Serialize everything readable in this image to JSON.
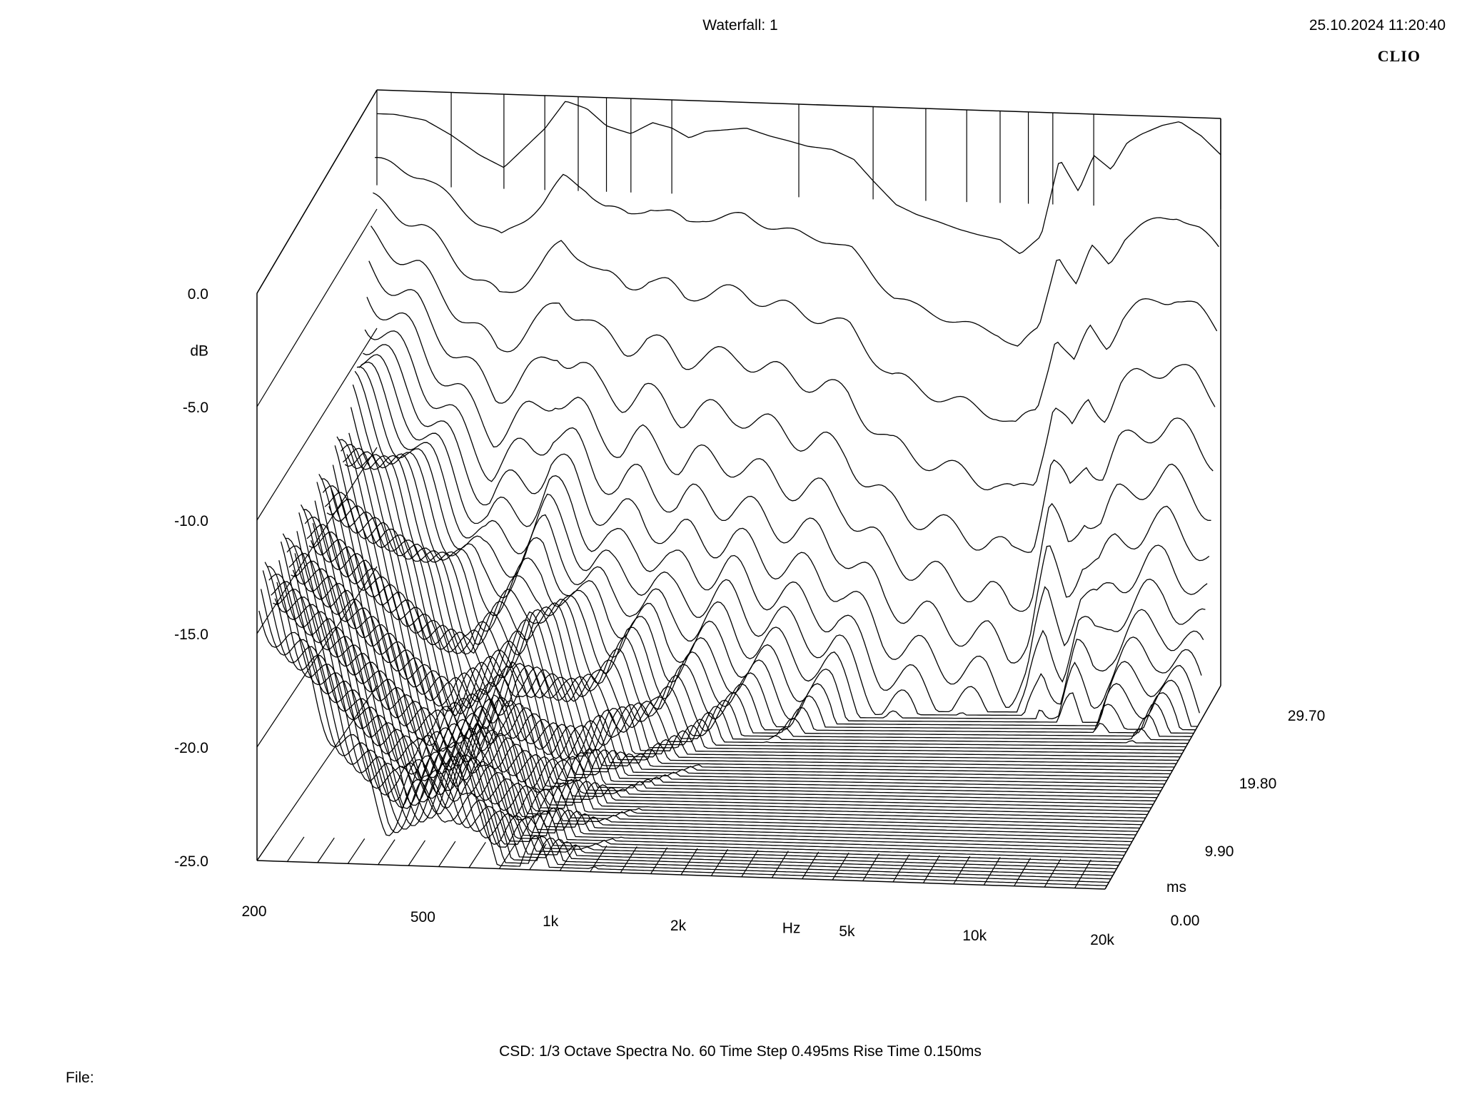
{
  "header": {
    "title": "Waterfall: 1",
    "datetime": "25.10.2024 11:20:40",
    "brand": "CLIO"
  },
  "footer": {
    "info": "CSD:   1/3 Octave   Spectra No. 60   Time Step 0.495ms   Rise Time 0.150ms",
    "file_label": "File:"
  },
  "chart_data": {
    "type": "waterfall",
    "title": "Waterfall: 1",
    "x_axis": {
      "label": "Hz",
      "scale": "log",
      "range": [
        200,
        20000
      ],
      "ticks": [
        {
          "value": 200,
          "label": "200"
        },
        {
          "value": 500,
          "label": "500"
        },
        {
          "value": 1000,
          "label": "1k"
        },
        {
          "value": 2000,
          "label": "2k"
        },
        {
          "value": 5000,
          "label": "5k"
        },
        {
          "value": 10000,
          "label": "10k"
        },
        {
          "value": 20000,
          "label": "20k"
        }
      ]
    },
    "y_axis": {
      "label": "dB",
      "range": [
        -25,
        0
      ],
      "ticks": [
        {
          "value": 0,
          "label": "0.0"
        },
        {
          "value": -5,
          "label": "-5.0"
        },
        {
          "value": -10,
          "label": "-10.0"
        },
        {
          "value": -15,
          "label": "-15.0"
        },
        {
          "value": -20,
          "label": "-20.0"
        },
        {
          "value": -25,
          "label": "-25.0"
        }
      ]
    },
    "z_axis": {
      "label": "ms",
      "range": [
        0,
        29.7
      ],
      "ticks": [
        {
          "value": 0,
          "label": "0.00"
        },
        {
          "value": 9.9,
          "label": "9.90"
        },
        {
          "value": 19.8,
          "label": "19.80"
        },
        {
          "value": 29.7,
          "label": "29.70"
        }
      ]
    },
    "method": "CSD",
    "smoothing": "1/3 Octave",
    "spectra_count": 60,
    "time_step_ms": 0.495,
    "rise_time_ms": 0.15,
    "first_spectrum": {
      "freq_hz": [
        220,
        260,
        300,
        350,
        400,
        450,
        500,
        560,
        630,
        700,
        800,
        900,
        1000,
        1100,
        1200,
        1350,
        1500,
        1700,
        1900,
        2100,
        2400,
        2700,
        3000,
        3400,
        3800,
        4300,
        4800,
        5300,
        6000,
        6700,
        7500,
        8300,
        9200,
        10000,
        11000,
        12000,
        13000,
        14500,
        16000,
        18000,
        20000
      ],
      "level_db": [
        -1.0,
        -1.2,
        -1.8,
        -2.6,
        -3.1,
        -2.2,
        -1.4,
        -0.2,
        -0.5,
        -1.2,
        -1.5,
        -1.0,
        -1.2,
        -1.6,
        -1.3,
        -1.2,
        -1.1,
        -1.4,
        -1.6,
        -1.8,
        -1.9,
        -2.3,
        -3.2,
        -4.2,
        -4.6,
        -4.9,
        -5.2,
        -5.4,
        -5.6,
        -6.2,
        -5.4,
        -2.0,
        -3.4,
        -1.8,
        -2.4,
        -1.2,
        -0.8,
        -0.4,
        -0.2,
        -0.8,
        -1.6
      ]
    }
  }
}
